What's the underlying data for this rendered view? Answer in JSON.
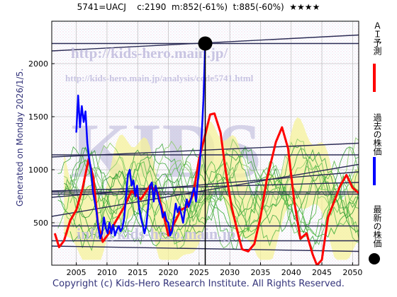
{
  "header": {
    "title": "5741=UACJ    c:2190  m:852(-61%)  t:885(-60%)  ★★★★"
  },
  "side_label": "Generated on Monday 2026/1/5.",
  "footer": {
    "copyright": "Copyright (c) Kids-Hero Research Institute. All Rights Reserved."
  },
  "watermarks": {
    "url": "http://kids-hero.main.jp/",
    "analysis": "http://kids-hero.main.jp/analysis/code5741.html",
    "big": "KIDS",
    "email": "info@kids-hero.main.jp"
  },
  "legend": [
    {
      "label": "ＡＩ予測",
      "color": "#ff0000",
      "kind": "line"
    },
    {
      "label": "過去の株価",
      "color": "#0000ff",
      "kind": "line"
    },
    {
      "label": "最新の株価",
      "color": "#000000",
      "kind": "dot"
    }
  ],
  "chart_data": {
    "type": "line",
    "xlim": [
      2001,
      2051
    ],
    "ylim": [
      100,
      2400
    ],
    "x_ticks": [
      2005,
      2010,
      2015,
      2020,
      2025,
      2030,
      2035,
      2040,
      2045,
      2050
    ],
    "y_ticks": [
      500,
      1000,
      1500,
      2000
    ],
    "current_point": {
      "x": 2026.0,
      "y": 2190
    },
    "current_year_marker": 2026.0,
    "series": [
      {
        "name": "過去の株価",
        "color": "#0000ff",
        "points": [
          [
            2005.0,
            1350
          ],
          [
            2005.3,
            1700
          ],
          [
            2005.6,
            1400
          ],
          [
            2005.9,
            1600
          ],
          [
            2006.2,
            1450
          ],
          [
            2006.5,
            1550
          ],
          [
            2006.8,
            1250
          ],
          [
            2007.1,
            1100
          ],
          [
            2007.4,
            1000
          ],
          [
            2007.7,
            800
          ],
          [
            2008.0,
            700
          ],
          [
            2008.3,
            600
          ],
          [
            2008.6,
            450
          ],
          [
            2008.9,
            350
          ],
          [
            2009.2,
            400
          ],
          [
            2009.5,
            550
          ],
          [
            2009.8,
            450
          ],
          [
            2010.1,
            400
          ],
          [
            2010.4,
            500
          ],
          [
            2010.7,
            400
          ],
          [
            2011.0,
            480
          ],
          [
            2011.3,
            380
          ],
          [
            2011.6,
            430
          ],
          [
            2011.9,
            470
          ],
          [
            2012.2,
            420
          ],
          [
            2012.5,
            450
          ],
          [
            2012.8,
            550
          ],
          [
            2013.1,
            750
          ],
          [
            2013.4,
            950
          ],
          [
            2013.7,
            1000
          ],
          [
            2014.0,
            850
          ],
          [
            2014.3,
            900
          ],
          [
            2014.6,
            750
          ],
          [
            2014.9,
            850
          ],
          [
            2015.2,
            650
          ],
          [
            2015.5,
            550
          ],
          [
            2015.8,
            480
          ],
          [
            2016.1,
            400
          ],
          [
            2016.4,
            480
          ],
          [
            2016.7,
            650
          ],
          [
            2017.0,
            850
          ],
          [
            2017.3,
            880
          ],
          [
            2017.6,
            700
          ],
          [
            2017.9,
            850
          ],
          [
            2018.2,
            780
          ],
          [
            2018.5,
            700
          ],
          [
            2018.8,
            650
          ],
          [
            2019.1,
            550
          ],
          [
            2019.4,
            600
          ],
          [
            2019.7,
            520
          ],
          [
            2020.0,
            500
          ],
          [
            2020.3,
            380
          ],
          [
            2020.6,
            420
          ],
          [
            2020.9,
            550
          ],
          [
            2021.2,
            680
          ],
          [
            2021.5,
            600
          ],
          [
            2021.8,
            650
          ],
          [
            2022.1,
            580
          ],
          [
            2022.4,
            500
          ],
          [
            2022.7,
            620
          ],
          [
            2023.0,
            720
          ],
          [
            2023.3,
            650
          ],
          [
            2023.6,
            700
          ],
          [
            2023.9,
            780
          ],
          [
            2024.2,
            830
          ],
          [
            2024.5,
            700
          ],
          [
            2024.8,
            900
          ],
          [
            2025.1,
            1050
          ],
          [
            2025.4,
            1300
          ],
          [
            2025.7,
            1650
          ],
          [
            2026.0,
            2190
          ]
        ]
      },
      {
        "name": "ＡＩ予測",
        "color": "#ff0000",
        "points": [
          [
            2001.5,
            400
          ],
          [
            2002.2,
            270
          ],
          [
            2003.0,
            330
          ],
          [
            2004.0,
            520
          ],
          [
            2005.0,
            620
          ],
          [
            2006.0,
            820
          ],
          [
            2007.0,
            1100
          ],
          [
            2007.8,
            920
          ],
          [
            2008.5,
            500
          ],
          [
            2009.3,
            320
          ],
          [
            2010.3,
            400
          ],
          [
            2011.5,
            520
          ],
          [
            2012.8,
            650
          ],
          [
            2014.0,
            800
          ],
          [
            2015.5,
            720
          ],
          [
            2017.0,
            850
          ],
          [
            2018.3,
            780
          ],
          [
            2019.3,
            550
          ],
          [
            2020.0,
            380
          ],
          [
            2021.0,
            500
          ],
          [
            2022.0,
            620
          ],
          [
            2023.0,
            650
          ],
          [
            2024.0,
            760
          ],
          [
            2025.0,
            1100
          ],
          [
            2026.0,
            1330
          ],
          [
            2026.8,
            1520
          ],
          [
            2027.5,
            1530
          ],
          [
            2028.5,
            1350
          ],
          [
            2029.3,
            1000
          ],
          [
            2030.3,
            650
          ],
          [
            2031.5,
            360
          ],
          [
            2032.0,
            250
          ],
          [
            2033.0,
            230
          ],
          [
            2034.0,
            300
          ],
          [
            2035.0,
            550
          ],
          [
            2036.0,
            900
          ],
          [
            2037.5,
            1260
          ],
          [
            2038.5,
            1400
          ],
          [
            2039.5,
            1200
          ],
          [
            2040.5,
            700
          ],
          [
            2041.5,
            350
          ],
          [
            2042.5,
            400
          ],
          [
            2043.5,
            200
          ],
          [
            2044.2,
            100
          ],
          [
            2045.0,
            150
          ],
          [
            2046.0,
            550
          ],
          [
            2047.0,
            700
          ],
          [
            2048.0,
            850
          ],
          [
            2049.0,
            950
          ],
          [
            2050.0,
            830
          ],
          [
            2051.0,
            780
          ]
        ]
      }
    ],
    "trend_lines": [
      [
        [
          2001,
          2120
        ],
        [
          2051,
          2270
        ]
      ],
      [
        [
          2001,
          2190
        ],
        [
          2051,
          2190
        ]
      ],
      [
        [
          2001,
          1120
        ],
        [
          2051,
          1250
        ]
      ],
      [
        [
          2001,
          1140
        ],
        [
          2051,
          1140
        ]
      ],
      [
        [
          2001,
          800
        ],
        [
          2051,
          880
        ]
      ],
      [
        [
          2001,
          790
        ],
        [
          2051,
          790
        ]
      ],
      [
        [
          2001,
          770
        ],
        [
          2051,
          770
        ]
      ],
      [
        [
          2001,
          740
        ],
        [
          2051,
          980
        ]
      ],
      [
        [
          2001,
          470
        ],
        [
          2051,
          470
        ]
      ],
      [
        [
          2001,
          330
        ],
        [
          2051,
          330
        ]
      ],
      [
        [
          2001,
          560
        ],
        [
          2051,
          1050
        ]
      ],
      [
        [
          2001,
          280
        ],
        [
          2051,
          230
        ]
      ]
    ]
  }
}
